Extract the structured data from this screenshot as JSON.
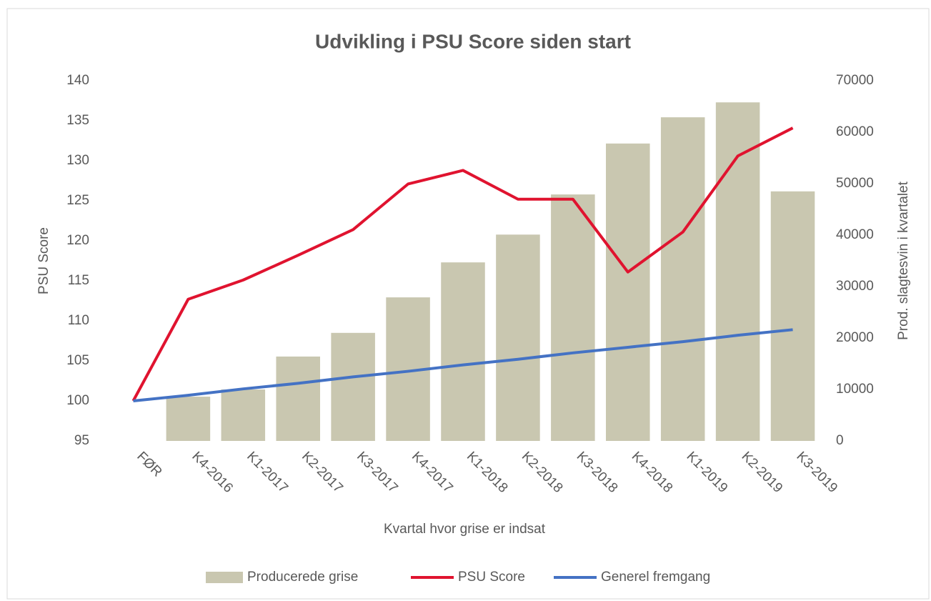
{
  "chart_data": {
    "type": "bar_line",
    "title": "Udvikling i PSU Score siden start",
    "x_label": "Kvartal hvor grise er indsat",
    "y_label": "PSU Score",
    "y2_label": "Prod. slagtesvin i kvartalet",
    "categories": [
      "FØR",
      "K4-2016",
      "K1-2017",
      "K2-2017",
      "K3-2017",
      "K4-2017",
      "K1-2018",
      "K2-2018",
      "K3-2018",
      "K4-2018",
      "K1-2019",
      "K2-2019",
      "K3-2019"
    ],
    "ylim": [
      95,
      140
    ],
    "yticks": [
      95,
      100,
      105,
      110,
      115,
      120,
      125,
      130,
      135,
      140
    ],
    "y2lim": [
      0,
      70000
    ],
    "y2ticks": [
      0,
      10000,
      20000,
      30000,
      40000,
      50000,
      60000,
      70000
    ],
    "legend": "bottom",
    "series": [
      {
        "name": "Producerede grise",
        "color": "#c9c7b0",
        "kind": "bar",
        "axis": "y2",
        "values": [
          null,
          8600,
          10000,
          16400,
          21000,
          27900,
          34700,
          40100,
          47900,
          57800,
          62900,
          65800,
          48500
        ]
      },
      {
        "name": "PSU Score",
        "color": "#e0132f",
        "kind": "line",
        "values": [
          100,
          112.7,
          115.1,
          118.2,
          121.4,
          127.1,
          128.8,
          125.2,
          125.2,
          116.1,
          121.1,
          130.6,
          134.1
        ]
      },
      {
        "name": "Generel fremgang",
        "color": "#4472c4",
        "kind": "line",
        "values": [
          100,
          100.7,
          101.5,
          102.2,
          103.0,
          103.7,
          104.5,
          105.2,
          106.0,
          106.7,
          107.4,
          108.2,
          108.9
        ]
      }
    ]
  }
}
